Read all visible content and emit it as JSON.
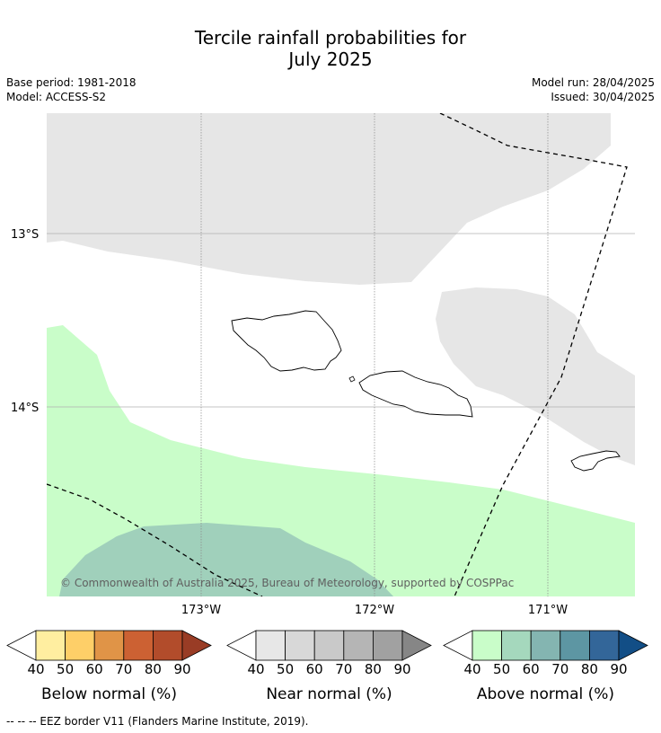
{
  "title_line1": "Tercile rainfall probabilities for",
  "title_line2": "July 2025",
  "meta": {
    "base_period": "Base period: 1981-2018",
    "model": "Model: ACCESS-S2",
    "model_run": "Model run: 28/04/2025",
    "issued": "Issued: 30/04/2025"
  },
  "map": {
    "lat_labels": [
      "13°S",
      "14°S"
    ],
    "lon_labels": [
      "173°W",
      "172°W",
      "171°W"
    ],
    "copyright": "© Commonwealth of Australia 2025, Bureau of Meteorology, supported by COSPPac"
  },
  "legends": [
    {
      "label": "Below normal (%)",
      "ticks": [
        "40",
        "50",
        "60",
        "70",
        "80",
        "90"
      ],
      "colors": [
        "#ffffff",
        "#ffeea0",
        "#fecf68",
        "#e09447",
        "#cc6133",
        "#b24c2b",
        "#993c25"
      ]
    },
    {
      "label": "Near normal (%)",
      "ticks": [
        "40",
        "50",
        "60",
        "70",
        "80",
        "90"
      ],
      "colors": [
        "#ffffff",
        "#e7e7e7",
        "#d8d8d8",
        "#c9c9c9",
        "#b5b5b5",
        "#a1a1a1",
        "#868686"
      ]
    },
    {
      "label": "Above normal (%)",
      "ticks": [
        "40",
        "50",
        "60",
        "70",
        "80",
        "90"
      ],
      "colors": [
        "#ffffff",
        "#c9fdc9",
        "#a5d8bd",
        "#84b5b1",
        "#5d96a3",
        "#336699",
        "#124e86"
      ]
    }
  ],
  "footer": "--  --  -- EEZ border V11 (Flanders Marine Institute, 2019)."
}
